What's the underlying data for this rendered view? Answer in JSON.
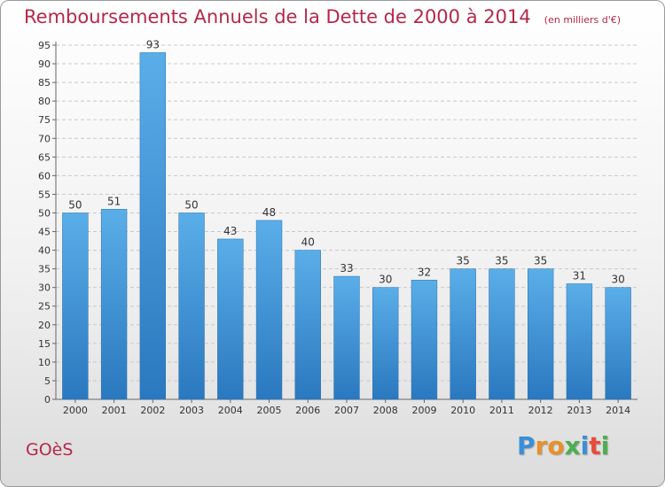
{
  "page": {
    "title": "Remboursements Annuels de la Dette de 2000 à 2014",
    "unit": "(en milliers d'€)",
    "commune": "GOèS",
    "logo_letters": [
      "P",
      "r",
      "o",
      "x",
      "i",
      "t",
      "i"
    ],
    "logo_colors": [
      "#3a8fd6",
      "#e8902a",
      "#e8902a",
      "#4caf50",
      "#3a8fd6",
      "#e84c3a",
      "#4caf50"
    ]
  },
  "chart_data": {
    "type": "bar",
    "title": "Remboursements Annuels de la Dette de 2000 à 2014",
    "subtitle": "(en milliers d'€)",
    "xlabel": "",
    "ylabel": "",
    "categories": [
      "2000",
      "2001",
      "2002",
      "2003",
      "2004",
      "2005",
      "2006",
      "2007",
      "2008",
      "2009",
      "2010",
      "2011",
      "2012",
      "2013",
      "2014"
    ],
    "values": [
      50,
      51,
      93,
      50,
      43,
      48,
      40,
      33,
      30,
      32,
      35,
      35,
      35,
      31,
      30
    ],
    "ylim": [
      0,
      95
    ],
    "ytick_step": 5,
    "grid": true,
    "data_labels": true,
    "bar_color_top": "#5aaee8",
    "bar_color_bottom": "#2a78bf",
    "grid_color": "#c8c8c8",
    "text_color": "#333333",
    "title_color": "#b5284a"
  }
}
